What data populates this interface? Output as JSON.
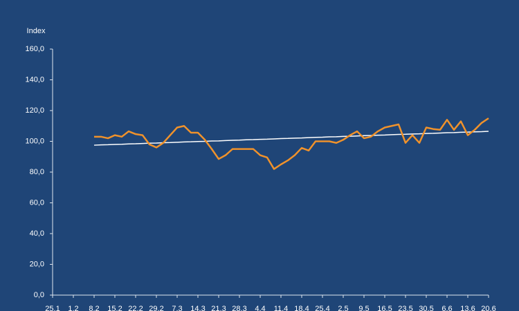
{
  "chart_data": {
    "type": "line",
    "y_label": "Index",
    "categories": [
      "25.1",
      null,
      null,
      "1.2",
      null,
      null,
      "8.2",
      null,
      null,
      "15.2",
      null,
      null,
      "22.2",
      null,
      null,
      "29.2",
      null,
      null,
      "7.3",
      null,
      null,
      "14.3",
      null,
      null,
      "21.3",
      null,
      null,
      "28.3",
      null,
      null,
      "4.4",
      null,
      null,
      "11.4",
      null,
      null,
      "18.4",
      null,
      null,
      "25.4",
      null,
      null,
      "2.5",
      null,
      null,
      "9.5",
      null,
      null,
      "16.5",
      null,
      null,
      "23.5",
      null,
      null,
      "30.5",
      null,
      null,
      "6.6",
      null,
      null,
      "13.6",
      null,
      null,
      "20.6"
    ],
    "series": [
      {
        "color": "#f0922b",
        "values": [
          null,
          null,
          null,
          null,
          null,
          null,
          103,
          103,
          102,
          104,
          103,
          106.5,
          104.7,
          104,
          98,
          96,
          99,
          104,
          109,
          110,
          105.6,
          105.6,
          101,
          95,
          88.5,
          91,
          95,
          95,
          95,
          95,
          91,
          89.5,
          82,
          85,
          87.6,
          91,
          95.7,
          94,
          100,
          100,
          100,
          99,
          101,
          104,
          106.5,
          102,
          103,
          106.5,
          109,
          110,
          111,
          99,
          104,
          99,
          109,
          108,
          107.5,
          114,
          107.5,
          113,
          104,
          107.5,
          112,
          115
        ]
      },
      {
        "color": "#ffffff",
        "values": [
          null,
          null,
          null,
          null,
          null,
          null,
          97.5,
          97.7,
          97.8,
          98.0,
          98.1,
          98.3,
          98.4,
          98.6,
          98.8,
          98.9,
          99.1,
          99.2,
          99.4,
          99.6,
          99.7,
          99.9,
          100.0,
          100.2,
          100.3,
          100.5,
          100.7,
          100.8,
          101.0,
          101.1,
          101.3,
          101.4,
          101.6,
          101.8,
          101.9,
          102.1,
          102.2,
          102.4,
          102.6,
          102.7,
          102.9,
          103.0,
          103.2,
          103.3,
          103.5,
          103.7,
          103.8,
          104.0,
          104.1,
          104.3,
          104.5,
          104.6,
          104.8,
          104.9,
          105.1,
          105.2,
          105.4,
          105.6,
          105.7,
          105.9,
          106.0,
          106.2,
          106.3,
          106.5
        ]
      }
    ],
    "ylim": [
      0,
      160
    ],
    "yticks": [
      {
        "value": 0,
        "label": "0,0"
      },
      {
        "value": 20,
        "label": "20,0"
      },
      {
        "value": 40,
        "label": "40,0"
      },
      {
        "value": 60,
        "label": "60,0"
      },
      {
        "value": 80,
        "label": "80,0"
      },
      {
        "value": 100,
        "label": "100,0"
      },
      {
        "value": 120,
        "label": "120,0"
      },
      {
        "value": 140,
        "label": "140,0"
      },
      {
        "value": 160,
        "label": "160,0"
      }
    ]
  }
}
